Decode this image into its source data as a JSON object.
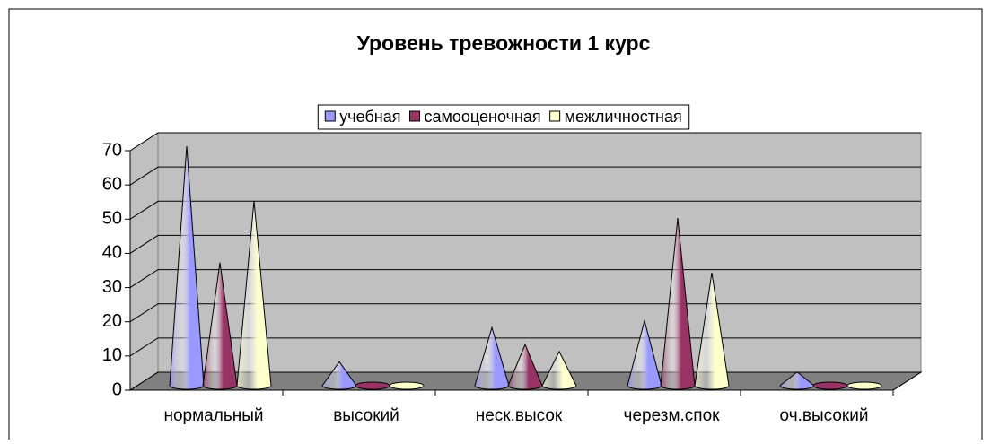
{
  "chart_data": {
    "type": "cone3d",
    "title": "Уровень тревожности 1 курс",
    "categories": [
      "нормальный",
      "высокий",
      "неск.высок",
      "черезм.спок",
      "оч.высокий"
    ],
    "series": [
      {
        "name": "учебная",
        "color": "#9999ff",
        "values": [
          70,
          7,
          17,
          19,
          4
        ]
      },
      {
        "name": "самооценочная",
        "color": "#993366",
        "values": [
          36,
          0,
          12,
          49,
          0
        ]
      },
      {
        "name": "межличностная",
        "color": "#ffffcc",
        "values": [
          54,
          0,
          10,
          33,
          0
        ]
      }
    ],
    "ylim": [
      0,
      70
    ],
    "yticks": [
      0,
      10,
      20,
      30,
      40,
      50,
      60,
      70
    ],
    "grid": true,
    "legend": "top"
  }
}
